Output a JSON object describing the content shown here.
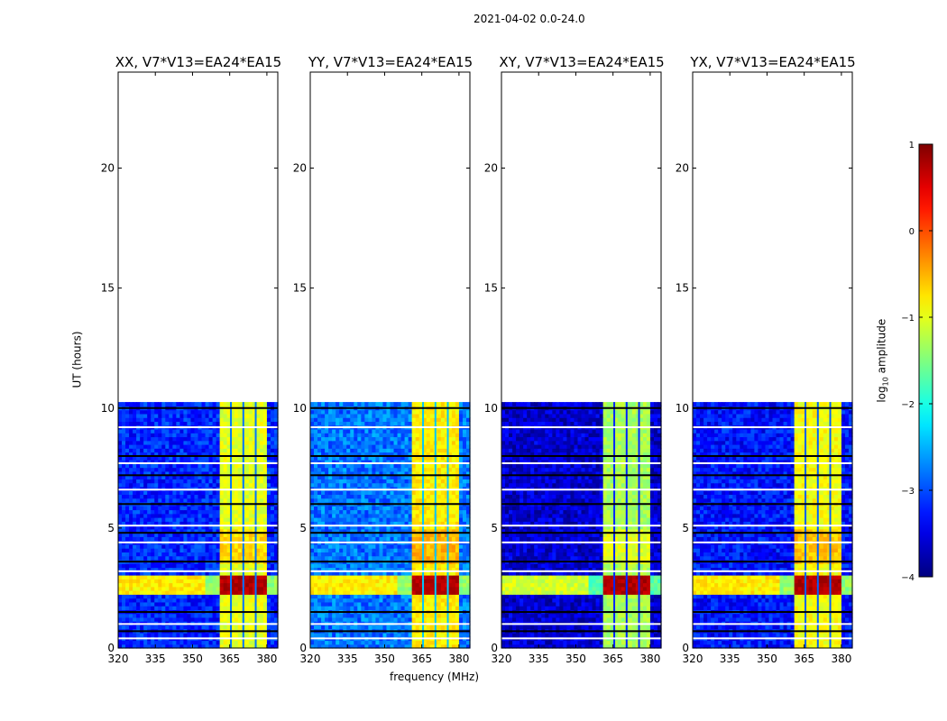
{
  "chart_data": {
    "type": "heatmap",
    "suptitle": "2021-04-02 0.0-24.0",
    "xlabel": "frequency (MHz)",
    "ylabel": "UT (hours)",
    "xlim": [
      320,
      384.4
    ],
    "ylim": [
      0,
      24
    ],
    "x_ticks": [
      "320",
      "335",
      "350",
      "365",
      "380"
    ],
    "x_tick_values": [
      320,
      335,
      350,
      365,
      380
    ],
    "y_ticks": [
      "0",
      "5",
      "10",
      "15",
      "20"
    ],
    "y_tick_values": [
      0,
      5,
      10,
      15,
      20
    ],
    "data_ut_range": [
      0,
      10.25
    ],
    "rfi_band_mhz": [
      361,
      380
    ],
    "rfi_notch_mhz": [
      365.5,
      370.5,
      375.5
    ],
    "strong_event_ut": [
      2.3,
      3.1
    ],
    "flagged_ut": [
      0.4,
      0.7,
      1.0,
      1.5,
      3.2,
      3.6,
      4.4,
      4.8,
      5.1,
      6.0,
      6.6,
      7.2,
      7.7,
      8.0,
      9.2,
      10.0
    ],
    "panels": [
      {
        "title": "XX, V7*V13=EA24*EA15",
        "base_level": -3.2,
        "band_level": -1.0
      },
      {
        "title": "YY, V7*V13=EA24*EA15",
        "base_level": -2.8,
        "band_level": -0.8
      },
      {
        "title": "XY, V7*V13=EA24*EA15",
        "base_level": -3.6,
        "band_level": -1.3
      },
      {
        "title": "YX, V7*V13=EA24*EA15",
        "base_level": -3.3,
        "band_level": -0.9
      }
    ],
    "colorbar": {
      "label": "log10 amplitude",
      "label_main": "log",
      "label_sub": "10",
      "label_rest": " amplitude",
      "range": [
        -4,
        1
      ],
      "ticks": [
        "1",
        "0",
        "−1",
        "−2",
        "−3",
        "−4"
      ],
      "tick_values": [
        1,
        0,
        -1,
        -2,
        -3,
        -4
      ],
      "colormap": "jet"
    }
  }
}
